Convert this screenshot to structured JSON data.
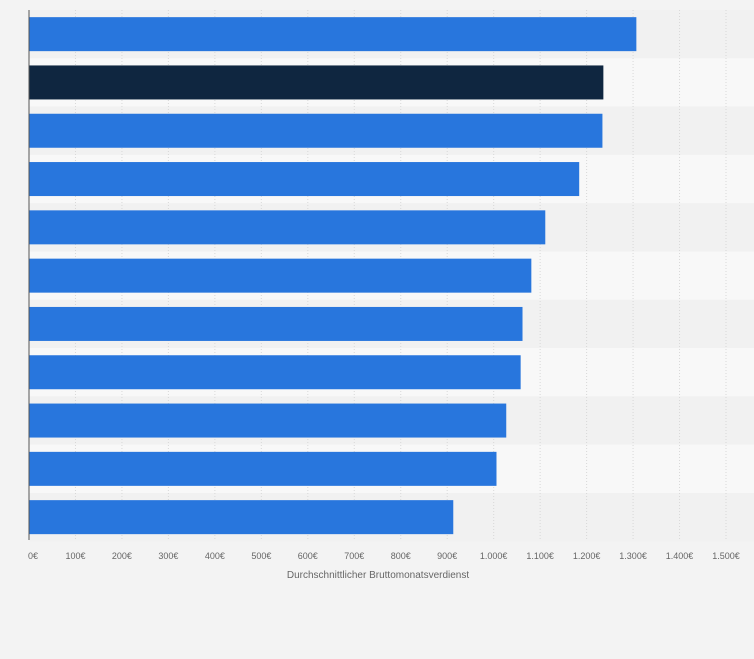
{
  "chart_data": {
    "type": "bar",
    "orientation": "horizontal",
    "categories": [
      "",
      "",
      "",
      "",
      "",
      "",
      "",
      "",
      "",
      "",
      ""
    ],
    "values": [
      1306,
      1235,
      1233,
      1183,
      1110,
      1080,
      1061,
      1057,
      1026,
      1005,
      912
    ],
    "highlight_index": 1,
    "title": "",
    "xlabel": "Durchschnittlicher Bruttomonatsverdienst",
    "ylabel": "",
    "xlim": [
      0,
      1500
    ],
    "xticks": [
      0,
      100,
      200,
      300,
      400,
      500,
      600,
      700,
      800,
      900,
      1000,
      1100,
      1200,
      1300,
      1400,
      1500
    ],
    "xtick_labels": [
      "0€",
      "100€",
      "200€",
      "300€",
      "400€",
      "500€",
      "600€",
      "700€",
      "800€",
      "900€",
      "1.000€",
      "1.100€",
      "1.200€",
      "1.300€",
      "1.400€",
      "1.500€"
    ],
    "grid": true,
    "colors": {
      "bar": "#2876dd",
      "highlight": "#0f2640",
      "band_a": "#f1f1f1",
      "band_b": "#f8f8f8",
      "grid": "#d8d8d8",
      "axis": "#555555"
    }
  }
}
